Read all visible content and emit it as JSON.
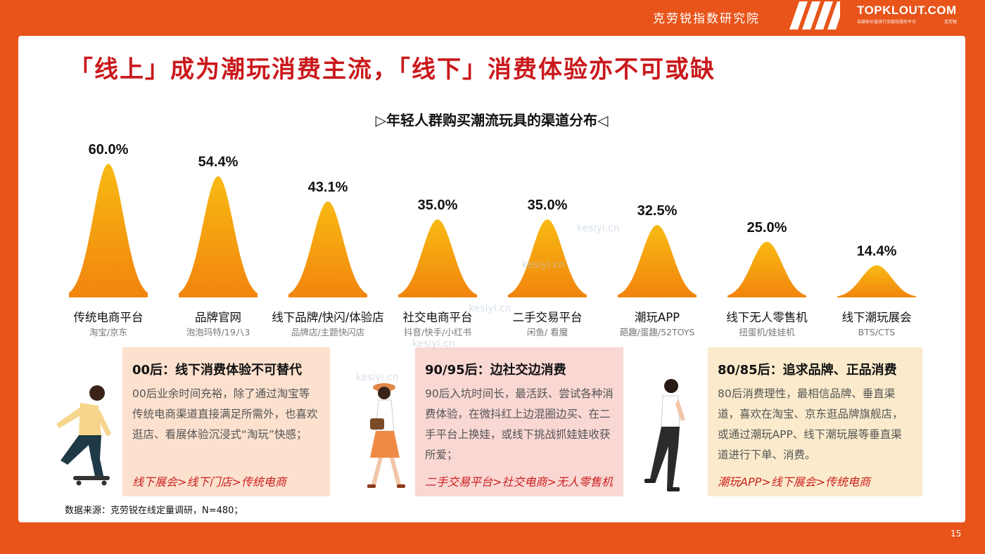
{
  "header": {
    "org_name": "克劳锐指数研究院",
    "brand": "TOPKLOUT.COM",
    "brand_subtitle": "自媒体价值排行及版权服务平台",
    "brand_mark": "克劳锐"
  },
  "main_title": "「线上」成为潮玩消费主流，「线下」消费体验亦不可或缺",
  "chart_title": "▷年轻人群购买潮流玩具的渠道分布◁",
  "chart_data": {
    "type": "bar",
    "title": "▷年轻人群购买潮流玩具的渠道分布◁",
    "categories": [
      "传统电商平台",
      "品牌官网",
      "线下品牌/快闪/体验店",
      "社交电商平台",
      "二手交易平台",
      "潮玩APP",
      "线下无人零售机",
      "线下潮玩展会"
    ],
    "sublabels": [
      "淘宝/京东",
      "泡泡玛特/19八3",
      "品牌店/主题快闪店",
      "抖音/快手/小红书",
      "闲鱼/ 看魔",
      "葩趣/蛋趣/52TOYS",
      "扭蛋机/娃娃机",
      "BTS/CTS"
    ],
    "values": [
      60.0,
      54.4,
      43.1,
      35.0,
      35.0,
      32.5,
      25.0,
      14.4
    ],
    "value_labels": [
      "60.0%",
      "54.4%",
      "43.1%",
      "35.0%",
      "35.0%",
      "32.5%",
      "25.0%",
      "14.4%"
    ],
    "xlabel": "",
    "ylabel": "",
    "ylim": [
      0,
      60
    ],
    "grid": false,
    "mark_shape": "bell-curve",
    "colors": {
      "bell_top": "#f8ba12",
      "bell_bottom": "#f2840e"
    }
  },
  "panels": [
    {
      "title": "00后：线下消费体验不可替代",
      "body": "00后业余时间充裕，除了通过淘宝等传统电商渠道直接满足所需外，也喜欢逛店、看展体验沉浸式“淘玩”快感；",
      "path": "线下展会>线下门店>传统电商"
    },
    {
      "title": "90/95后：边社交边消费",
      "body": "90后入坑时间长，最活跃、尝试各种消费体验，在微抖红上边混圈边买、在二手平台上换娃，或线下挑战抓娃娃收获所爱；",
      "path": "二手交易平台>社交电商>无人零售机"
    },
    {
      "title": "80/85后：追求品牌、正品消费",
      "body": "80后消费理性，最相信品牌、垂直渠道，喜欢在淘宝、京东逛品牌旗舰店，或通过潮玩APP、线下潮玩展等垂直渠道进行下单、消费。",
      "path": "潮玩APP>线下展会>传统电商"
    }
  ],
  "watermark_text": "kesiyi.cn",
  "source": "数据来源：克劳锐在线定量调研，N=480；",
  "page_number": "15",
  "colors": {
    "background": "#e8541a",
    "title_red": "#c9191c",
    "path_red": "#cc1f1f"
  }
}
